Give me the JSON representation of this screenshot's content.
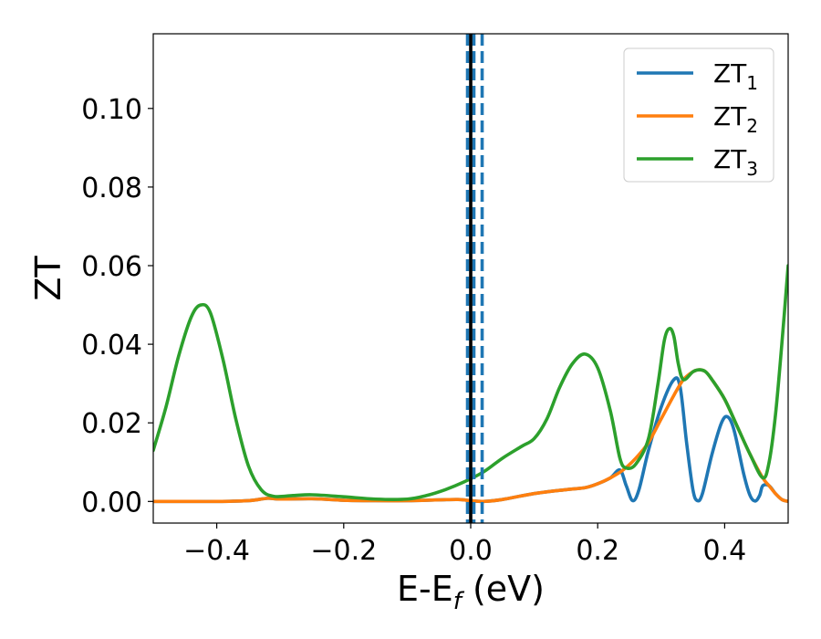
{
  "chart_data": {
    "type": "line",
    "xlabel": "E-E",
    "xlabel_sub": "f",
    "xlabel_unit": " (eV)",
    "ylabel": "ZT",
    "xlim": [
      -0.5,
      0.5
    ],
    "ylim": [
      -0.0055,
      0.119
    ],
    "x_ticks": [
      -0.4,
      -0.2,
      0.0,
      0.2,
      0.4
    ],
    "x_tick_labels": [
      "−0.4",
      "−0.2",
      "0.0",
      "0.2",
      "0.4"
    ],
    "y_ticks": [
      0.0,
      0.02,
      0.04,
      0.06,
      0.08,
      0.1
    ],
    "y_tick_labels": [
      "0.00",
      "0.02",
      "0.04",
      "0.06",
      "0.08",
      "0.10"
    ],
    "grid": false,
    "legend_position": "top-right",
    "series": [
      {
        "name": "ZT",
        "name_sub": "1",
        "color": "#1f77b4",
        "points": [
          [
            -0.5,
            0.0
          ],
          [
            -0.45,
            0.0
          ],
          [
            -0.4,
            0.0
          ],
          [
            -0.35,
            0.0002
          ],
          [
            -0.32,
            0.0008
          ],
          [
            -0.3,
            0.0006
          ],
          [
            -0.25,
            0.0007
          ],
          [
            -0.2,
            0.0003
          ],
          [
            -0.15,
            0.0002
          ],
          [
            -0.1,
            0.0002
          ],
          [
            -0.05,
            0.0004
          ],
          [
            -0.02,
            0.0005
          ],
          [
            0.0,
            0.0002
          ],
          [
            0.02,
            0.0
          ],
          [
            0.05,
            0.0005
          ],
          [
            0.1,
            0.002
          ],
          [
            0.15,
            0.003
          ],
          [
            0.18,
            0.0035
          ],
          [
            0.2,
            0.0045
          ],
          [
            0.22,
            0.006
          ],
          [
            0.235,
            0.008
          ],
          [
            0.245,
            0.004
          ],
          [
            0.255,
            0.0002
          ],
          [
            0.265,
            0.003
          ],
          [
            0.28,
            0.013
          ],
          [
            0.3,
            0.024
          ],
          [
            0.32,
            0.031
          ],
          [
            0.33,
            0.029
          ],
          [
            0.34,
            0.015
          ],
          [
            0.35,
            0.003
          ],
          [
            0.357,
            0.0002
          ],
          [
            0.365,
            0.002
          ],
          [
            0.38,
            0.012
          ],
          [
            0.395,
            0.02
          ],
          [
            0.405,
            0.0215
          ],
          [
            0.415,
            0.018
          ],
          [
            0.43,
            0.007
          ],
          [
            0.44,
            0.0015
          ],
          [
            0.448,
            0.0001
          ],
          [
            0.455,
            0.0015
          ],
          [
            0.46,
            0.004
          ],
          [
            0.47,
            0.004
          ],
          [
            0.48,
            0.002
          ],
          [
            0.49,
            0.0005
          ],
          [
            0.5,
            0.0
          ]
        ]
      },
      {
        "name": "ZT",
        "name_sub": "2",
        "color": "#ff7f0e",
        "points": [
          [
            -0.5,
            0.0
          ],
          [
            -0.45,
            0.0
          ],
          [
            -0.4,
            0.0
          ],
          [
            -0.35,
            0.0002
          ],
          [
            -0.32,
            0.0008
          ],
          [
            -0.3,
            0.0006
          ],
          [
            -0.25,
            0.0007
          ],
          [
            -0.2,
            0.0003
          ],
          [
            -0.15,
            0.0002
          ],
          [
            -0.1,
            0.0002
          ],
          [
            -0.05,
            0.0004
          ],
          [
            -0.02,
            0.0005
          ],
          [
            0.0,
            0.0002
          ],
          [
            0.02,
            0.0
          ],
          [
            0.05,
            0.0005
          ],
          [
            0.1,
            0.002
          ],
          [
            0.15,
            0.003
          ],
          [
            0.18,
            0.0035
          ],
          [
            0.2,
            0.0045
          ],
          [
            0.22,
            0.006
          ],
          [
            0.24,
            0.008
          ],
          [
            0.26,
            0.011
          ],
          [
            0.28,
            0.015
          ],
          [
            0.3,
            0.021
          ],
          [
            0.32,
            0.027
          ],
          [
            0.335,
            0.031
          ],
          [
            0.35,
            0.033
          ],
          [
            0.36,
            0.0335
          ],
          [
            0.37,
            0.033
          ],
          [
            0.38,
            0.031
          ],
          [
            0.4,
            0.026
          ],
          [
            0.42,
            0.019
          ],
          [
            0.44,
            0.012
          ],
          [
            0.46,
            0.006
          ],
          [
            0.47,
            0.004
          ],
          [
            0.48,
            0.002
          ],
          [
            0.49,
            0.0005
          ],
          [
            0.5,
            0.0
          ]
        ]
      },
      {
        "name": "ZT",
        "name_sub": "3",
        "color": "#2ca02c",
        "points": [
          [
            -0.5,
            0.013
          ],
          [
            -0.48,
            0.024
          ],
          [
            -0.46,
            0.037
          ],
          [
            -0.44,
            0.047
          ],
          [
            -0.425,
            0.05
          ],
          [
            -0.41,
            0.048
          ],
          [
            -0.39,
            0.036
          ],
          [
            -0.37,
            0.021
          ],
          [
            -0.35,
            0.009
          ],
          [
            -0.33,
            0.003
          ],
          [
            -0.31,
            0.0013
          ],
          [
            -0.28,
            0.0015
          ],
          [
            -0.25,
            0.0017
          ],
          [
            -0.2,
            0.0012
          ],
          [
            -0.15,
            0.0006
          ],
          [
            -0.1,
            0.0006
          ],
          [
            -0.07,
            0.0015
          ],
          [
            -0.04,
            0.003
          ],
          [
            -0.01,
            0.005
          ],
          [
            0.02,
            0.0075
          ],
          [
            0.05,
            0.011
          ],
          [
            0.08,
            0.014
          ],
          [
            0.1,
            0.016
          ],
          [
            0.12,
            0.021
          ],
          [
            0.14,
            0.029
          ],
          [
            0.16,
            0.035
          ],
          [
            0.18,
            0.0375
          ],
          [
            0.2,
            0.034
          ],
          [
            0.22,
            0.023
          ],
          [
            0.235,
            0.011
          ],
          [
            0.245,
            0.0085
          ],
          [
            0.26,
            0.0095
          ],
          [
            0.28,
            0.016
          ],
          [
            0.295,
            0.03
          ],
          [
            0.305,
            0.041
          ],
          [
            0.313,
            0.044
          ],
          [
            0.32,
            0.042
          ],
          [
            0.327,
            0.035
          ],
          [
            0.335,
            0.031
          ],
          [
            0.35,
            0.033
          ],
          [
            0.36,
            0.0335
          ],
          [
            0.37,
            0.033
          ],
          [
            0.38,
            0.031
          ],
          [
            0.4,
            0.026
          ],
          [
            0.42,
            0.019
          ],
          [
            0.44,
            0.012
          ],
          [
            0.46,
            0.006
          ],
          [
            0.47,
            0.01
          ],
          [
            0.48,
            0.022
          ],
          [
            0.49,
            0.04
          ],
          [
            0.5,
            0.06
          ]
        ]
      }
    ],
    "vertical_lines": [
      {
        "x": 0.0,
        "color": "#000000",
        "style": "solid"
      },
      {
        "x": -0.005,
        "color": "#1f77b4",
        "style": "dashed"
      },
      {
        "x": 0.005,
        "color": "#1f77b4",
        "style": "dashed"
      },
      {
        "x": 0.018,
        "color": "#1f77b4",
        "style": "dashed"
      }
    ]
  }
}
